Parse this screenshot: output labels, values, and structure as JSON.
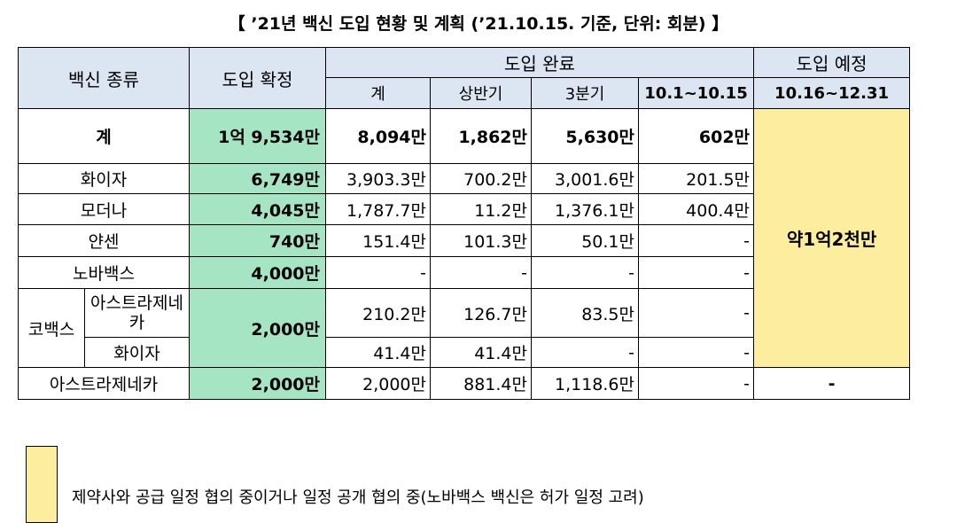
{
  "title": "【 ’21년 백신 도입 현황 및 계획 (’21.10.15. 기준, 단위: 회분) 】",
  "headers": {
    "vaccine_type": "백신 종류",
    "confirmed": "도입 확정",
    "completed": "도입 완료",
    "planned": "도입 예정",
    "sub_total": "계",
    "sub_h1": "상반기",
    "sub_q3": "3분기",
    "sub_oct": "10.1~10.15",
    "sub_planned": "10.16~12.31"
  },
  "rows": {
    "total": {
      "name": "계",
      "confirmed": "1억 9,534만",
      "total": "8,094만",
      "h1": "1,862만",
      "q3": "5,630만",
      "oct": "602만"
    },
    "pfizer": {
      "name": "화이자",
      "confirmed": "6,749만",
      "total": "3,903.3만",
      "h1": "700.2만",
      "q3": "3,001.6만",
      "oct": "201.5만"
    },
    "moderna": {
      "name": "모더나",
      "confirmed": "4,045만",
      "total": "1,787.7만",
      "h1": "11.2만",
      "q3": "1,376.1만",
      "oct": "400.4만"
    },
    "janssen": {
      "name": "얀센",
      "confirmed": "740만",
      "total": "151.4만",
      "h1": "101.3만",
      "q3": "50.1만",
      "oct": "-"
    },
    "novavax": {
      "name": "노바백스",
      "confirmed": "4,000만",
      "total": "-",
      "h1": "-",
      "q3": "-",
      "oct": "-"
    },
    "covax": {
      "group": "코백스",
      "confirmed": "2,000만",
      "az": {
        "name": "아스트라제네카",
        "total": "210.2만",
        "h1": "126.7만",
        "q3": "83.5만",
        "oct": "-"
      },
      "pfizer": {
        "name": "화이자",
        "total": "41.4만",
        "h1": "41.4만",
        "q3": "-",
        "oct": "-"
      }
    },
    "az": {
      "name": "아스트라제네카",
      "confirmed": "2,000만",
      "total": "2,000만",
      "h1": "881.4만",
      "q3": "1,118.6만",
      "oct": "-",
      "planned": "-"
    }
  },
  "planned_total": "약1억2천만",
  "legend": {
    "color": "#fdee9f",
    "text": "제약사와 공급 일정 협의 중이거나 일정 공개 협의 중(노바백스 백신은 허가 일정 고려)"
  }
}
